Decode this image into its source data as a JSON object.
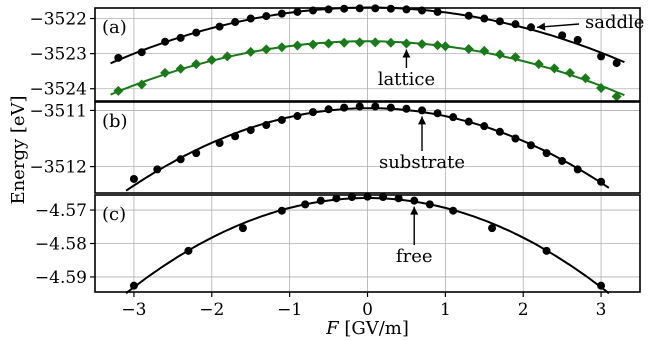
{
  "chart_data": {
    "type": "line",
    "shared_x": {
      "label": "F [GV/m]",
      "ticks": [
        -3,
        -2,
        -1,
        0,
        1,
        2,
        3
      ],
      "tick_labels": [
        "−3",
        "−2",
        "−1",
        "0",
        "1",
        "2",
        "3"
      ],
      "lim": [
        -3.5,
        3.5
      ]
    },
    "ylabel": "Energy [eV]",
    "grid": true,
    "panels": [
      {
        "id": "(a)",
        "ylim": [
          -3524.35,
          -3521.7
        ],
        "yticks": [
          -3522,
          -3523,
          -3524
        ],
        "ytick_labels": [
          "−3522",
          "−3523",
          "−3524"
        ],
        "series": [
          {
            "name": "saddle",
            "color": "#000000",
            "marker": "circle",
            "x": [
              -3.2,
              -2.9,
              -2.6,
              -2.4,
              -2.2,
              -1.9,
              -1.7,
              -1.5,
              -1.3,
              -1.1,
              -0.9,
              -0.7,
              -0.5,
              -0.3,
              -0.1,
              0.1,
              0.3,
              0.5,
              0.7,
              0.9,
              1.3,
              1.5,
              1.7,
              1.9,
              2.1,
              2.5,
              2.7,
              3.0,
              3.2
            ],
            "y": [
              -3523.12,
              -3522.96,
              -3522.66,
              -3522.55,
              -3522.4,
              -3522.23,
              -3522.1,
              -3522.0,
              -3521.93,
              -3521.86,
              -3521.81,
              -3521.77,
              -3521.74,
              -3521.72,
              -3521.71,
              -3521.71,
              -3521.72,
              -3521.74,
              -3521.77,
              -3521.81,
              -3521.92,
              -3522.0,
              -3522.08,
              -3522.16,
              -3522.25,
              -3522.48,
              -3522.61,
              -3523.08,
              -3523.27
            ]
          },
          {
            "name": "lattice",
            "color": "#1a7a1a",
            "marker": "diamond",
            "x": [
              -3.2,
              -2.9,
              -2.6,
              -2.4,
              -2.2,
              -2.0,
              -1.8,
              -1.5,
              -1.3,
              -1.1,
              -0.9,
              -0.7,
              -0.5,
              -0.3,
              -0.1,
              0.1,
              0.3,
              0.5,
              0.7,
              0.9,
              1.0,
              1.3,
              1.5,
              1.7,
              1.9,
              2.2,
              2.4,
              2.6,
              2.8,
              3.0,
              3.2
            ],
            "y": [
              -3524.06,
              -3523.88,
              -3523.55,
              -3523.43,
              -3523.3,
              -3523.18,
              -3523.08,
              -3522.95,
              -3522.88,
              -3522.82,
              -3522.77,
              -3522.74,
              -3522.71,
              -3522.69,
              -3522.68,
              -3522.68,
              -3522.69,
              -3522.71,
              -3522.73,
              -3522.76,
              -3522.79,
              -3522.87,
              -3522.92,
              -3523.02,
              -3523.1,
              -3523.3,
              -3523.42,
              -3523.55,
              -3523.7,
              -3523.98,
              -3524.22
            ]
          }
        ],
        "annotations": [
          {
            "text": "saddle",
            "series": "saddle",
            "target_x": 2.2
          },
          {
            "text": "lattice",
            "series": "lattice",
            "target_x": 0.5
          }
        ]
      },
      {
        "id": "(b)",
        "ylim": [
          -3512.47,
          -3510.85
        ],
        "yticks": [
          -3511,
          -3512
        ],
        "ytick_labels": [
          "−3511",
          "−3512"
        ],
        "series": [
          {
            "name": "substrate",
            "color": "#000000",
            "marker": "circle",
            "x": [
              -3.0,
              -2.7,
              -2.4,
              -2.2,
              -1.9,
              -1.7,
              -1.5,
              -1.3,
              -1.1,
              -0.9,
              -0.7,
              -0.5,
              -0.3,
              -0.1,
              0.1,
              0.3,
              0.5,
              0.7,
              0.9,
              1.1,
              1.3,
              1.5,
              1.7,
              1.9,
              2.1,
              2.3,
              2.5,
              2.7,
              3.0
            ],
            "y": [
              -3512.22,
              -3512.05,
              -3511.87,
              -3511.76,
              -3511.58,
              -3511.46,
              -3511.35,
              -3511.26,
              -3511.17,
              -3511.1,
              -3511.03,
              -3510.98,
              -3510.95,
              -3510.93,
              -3510.93,
              -3510.95,
              -3510.97,
              -3511.0,
              -3511.05,
              -3511.12,
              -3511.2,
              -3511.28,
              -3511.38,
              -3511.5,
              -3511.62,
              -3511.76,
              -3511.9,
              -3512.05,
              -3512.27
            ]
          }
        ],
        "annotations": [
          {
            "text": "substrate",
            "series": "substrate",
            "target_x": 0.65
          }
        ]
      },
      {
        "id": "(c)",
        "ylim": [
          -4.5945,
          -4.5655
        ],
        "yticks": [
          -4.57,
          -4.58,
          -4.59
        ],
        "ytick_labels": [
          "−4.57",
          "−4.58",
          "−4.59"
        ],
        "series": [
          {
            "name": "free",
            "color": "#000000",
            "marker": "circle",
            "x": [
              -3.0,
              -2.3,
              -1.6,
              -1.1,
              -0.8,
              -0.6,
              -0.4,
              -0.2,
              0.0,
              0.2,
              0.4,
              0.6,
              0.8,
              1.1,
              1.6,
              2.3,
              3.0
            ],
            "y": [
              -4.5926,
              -4.5822,
              -4.5754,
              -4.5702,
              -4.5683,
              -4.5672,
              -4.5665,
              -4.5661,
              -4.566,
              -4.5661,
              -4.5665,
              -4.5672,
              -4.5683,
              -4.5702,
              -4.5754,
              -4.5822,
              -4.5926
            ]
          }
        ],
        "annotations": [
          {
            "text": "free",
            "series": "free",
            "target_x": 0.6
          }
        ]
      }
    ]
  }
}
